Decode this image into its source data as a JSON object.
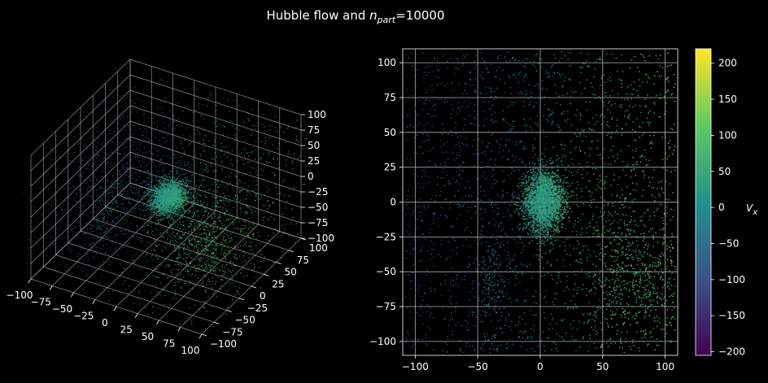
{
  "chart_data": {
    "title_main": "Hubble flow and ",
    "title_var": "n",
    "title_sub": "part",
    "title_value": "=10000",
    "colorbar_label_var": "V",
    "colorbar_label_sub": "x",
    "colormap": [
      "#440154",
      "#3b528b",
      "#21918c",
      "#5ec962",
      "#fde725"
    ],
    "background": "#000000",
    "charts": [
      {
        "type": "scatter3d",
        "xlim": [
          -100,
          100
        ],
        "ylim": [
          -100,
          100
        ],
        "zlim": [
          -100,
          100
        ],
        "x_ticks": [
          "−100",
          "−75",
          "−50",
          "−25",
          "0",
          "25",
          "50",
          "75",
          "100"
        ],
        "y_ticks": [
          "−100",
          "−75",
          "−50",
          "−25",
          "0",
          "25",
          "50",
          "75",
          "100"
        ],
        "z_ticks": [
          "−100",
          "−75",
          "−50",
          "−25",
          "0",
          "25",
          "50",
          "75",
          "100"
        ],
        "grid": true
      },
      {
        "type": "scatter",
        "xlim": [
          -110,
          110
        ],
        "ylim": [
          -110,
          110
        ],
        "x_ticks": [
          "−100",
          "−50",
          "0",
          "50",
          "100"
        ],
        "x_tick_values": [
          -100,
          -50,
          0,
          50,
          100
        ],
        "y_ticks": [
          "100",
          "75",
          "50",
          "25",
          "0",
          "−25",
          "−50",
          "−75",
          "−100"
        ],
        "y_tick_values": [
          100,
          75,
          50,
          25,
          0,
          -25,
          -50,
          -75,
          -100
        ],
        "grid": true
      }
    ],
    "colorbar": {
      "range": [
        -205,
        220
      ],
      "ticks": [
        "200",
        "150",
        "100",
        "50",
        "0",
        "−50",
        "−100",
        "−150",
        "−200"
      ],
      "tick_values": [
        200,
        150,
        100,
        50,
        0,
        -50,
        -100,
        -150,
        -200
      ]
    },
    "clusters": [
      {
        "x": 0,
        "y": 0,
        "spread": 10,
        "fraction": 0.3,
        "vx_mean": 25
      },
      {
        "x": 30,
        "y": -60,
        "spread": 40,
        "fraction": 0.1,
        "vx_mean": 90
      },
      {
        "x": -40,
        "y": 20,
        "spread": 40,
        "fraction": 0.1,
        "vx_mean": -60
      }
    ]
  }
}
